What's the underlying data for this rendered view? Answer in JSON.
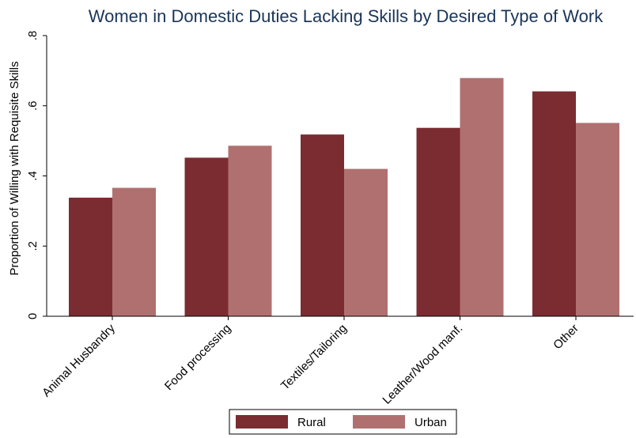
{
  "chart_data": {
    "type": "bar",
    "title": "Women in Domestic Duties Lacking Skills by Desired Type of Work",
    "ylabel": "Proportion of Willing with Requisite Skills",
    "xlabel": "",
    "ylim": [
      0,
      0.8
    ],
    "yticks": [
      {
        "value": 0,
        "label": "0"
      },
      {
        "value": 0.2,
        "label": ".2"
      },
      {
        "value": 0.4,
        "label": ".4"
      },
      {
        "value": 0.6,
        "label": ".6"
      },
      {
        "value": 0.8,
        "label": ".8"
      }
    ],
    "categories": [
      "Animal Husbandry",
      "Food processing",
      "Textiles/Tailoring",
      "Leather/Wood manf.",
      "Other"
    ],
    "series": [
      {
        "name": "Rural",
        "color": "#7b2c31",
        "values": [
          0.338,
          0.452,
          0.518,
          0.537,
          0.641
        ]
      },
      {
        "name": "Urban",
        "color": "#b07070",
        "values": [
          0.366,
          0.486,
          0.42,
          0.679,
          0.551
        ]
      }
    ],
    "legend_position": "bottom",
    "grid": false
  }
}
